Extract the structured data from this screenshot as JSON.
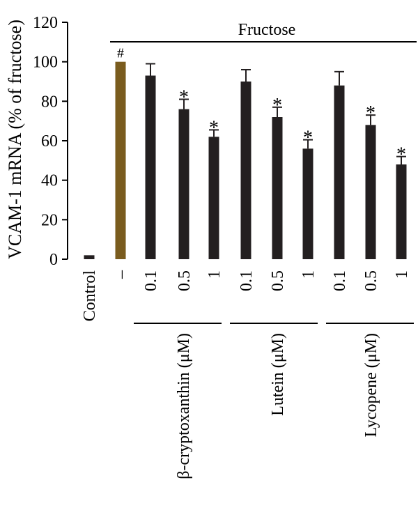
{
  "chart_data": {
    "type": "bar",
    "ylabel": "VCAM-1 mRNA (% of fructose)",
    "ylim": [
      0,
      120
    ],
    "yticks": [
      0,
      20,
      40,
      60,
      80,
      100,
      120
    ],
    "categories": [
      "Control",
      "–",
      "0.1",
      "0.5",
      "1",
      "0.1",
      "0.5",
      "1",
      "0.1",
      "0.5",
      "1"
    ],
    "values": [
      2,
      100,
      93,
      76,
      62,
      90,
      72,
      56,
      88,
      68,
      48
    ],
    "errors": [
      0,
      0,
      6,
      5,
      3.5,
      6,
      5,
      4.5,
      7,
      5,
      4
    ],
    "annotations": [
      "",
      "#",
      "",
      "*",
      "*",
      "",
      "*",
      "*",
      "",
      "*",
      "*"
    ],
    "colors": [
      "#231f20",
      "#7a5c1e",
      "#231f20",
      "#231f20",
      "#231f20",
      "#231f20",
      "#231f20",
      "#231f20",
      "#231f20",
      "#231f20",
      "#231f20"
    ],
    "bracket_label": "Fructose",
    "groups": [
      {
        "label": "β-cryptoxanthin (μM)"
      },
      {
        "label": "Lutein (μM)"
      },
      {
        "label": "Lycopene (μM)"
      }
    ]
  }
}
